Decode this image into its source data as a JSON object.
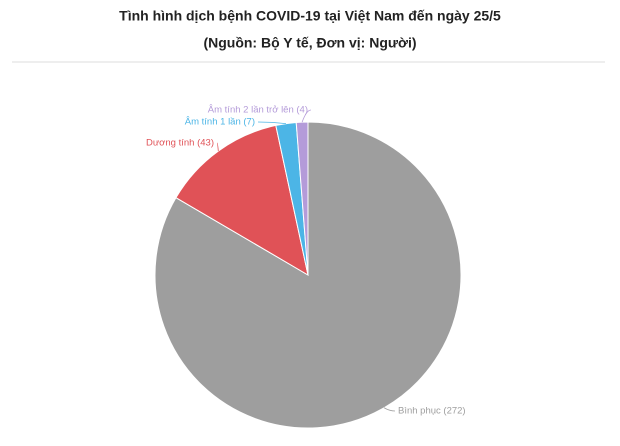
{
  "chart_data": {
    "type": "pie",
    "title": "Tình hình dịch bệnh COVID-19 tại Việt Nam đến ngày 25/5",
    "subtitle": "(Nguồn: Bộ Y tế, Đơn vị: Người)",
    "values": [
      272,
      43,
      7,
      4
    ],
    "value_labels": [
      "Bình phục (272)",
      "Dương tính (43)",
      "Âm tính 1 lần (7)",
      "Âm tính 2 lần trở lên (4)"
    ],
    "colors": [
      "#9e9e9e",
      "#e05257",
      "#4cb5e6",
      "#b49bd9"
    ]
  }
}
